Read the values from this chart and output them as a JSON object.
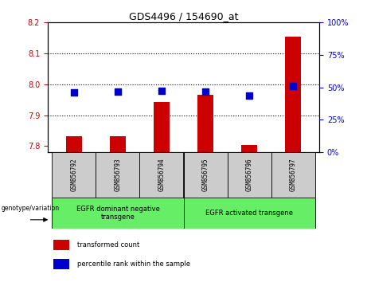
{
  "title": "GDS4496 / 154690_at",
  "samples": [
    "GSM856792",
    "GSM856793",
    "GSM856794",
    "GSM856795",
    "GSM856796",
    "GSM856797"
  ],
  "red_values": [
    7.832,
    7.832,
    7.942,
    7.965,
    7.803,
    8.155
  ],
  "blue_percentiles": [
    46,
    47,
    47.5,
    47,
    44,
    51
  ],
  "ylim_left": [
    7.78,
    8.2
  ],
  "ylim_right": [
    0,
    100
  ],
  "yticks_left": [
    7.8,
    7.9,
    8.0,
    8.1,
    8.2
  ],
  "yticks_right": [
    0,
    25,
    50,
    75,
    100
  ],
  "grid_values": [
    7.9,
    8.0,
    8.1
  ],
  "groups": [
    {
      "label": "EGFR dominant negative\ntransgene",
      "color": "#66EE66"
    },
    {
      "label": "EGFR activated transgene",
      "color": "#66EE66"
    }
  ],
  "group_boundary": 2.5,
  "bar_color": "#CC0000",
  "dot_color": "#0000CC",
  "bar_width": 0.35,
  "dot_size": 30,
  "legend_items": [
    "transformed count",
    "percentile rank within the sample"
  ],
  "background_color": "#ffffff",
  "plot_bg_color": "#ffffff",
  "tick_label_color_left": "#CC0000",
  "tick_label_color_right": "#0000CC",
  "sample_bg_color": "#cccccc",
  "genotype_label": "genotype/variation"
}
